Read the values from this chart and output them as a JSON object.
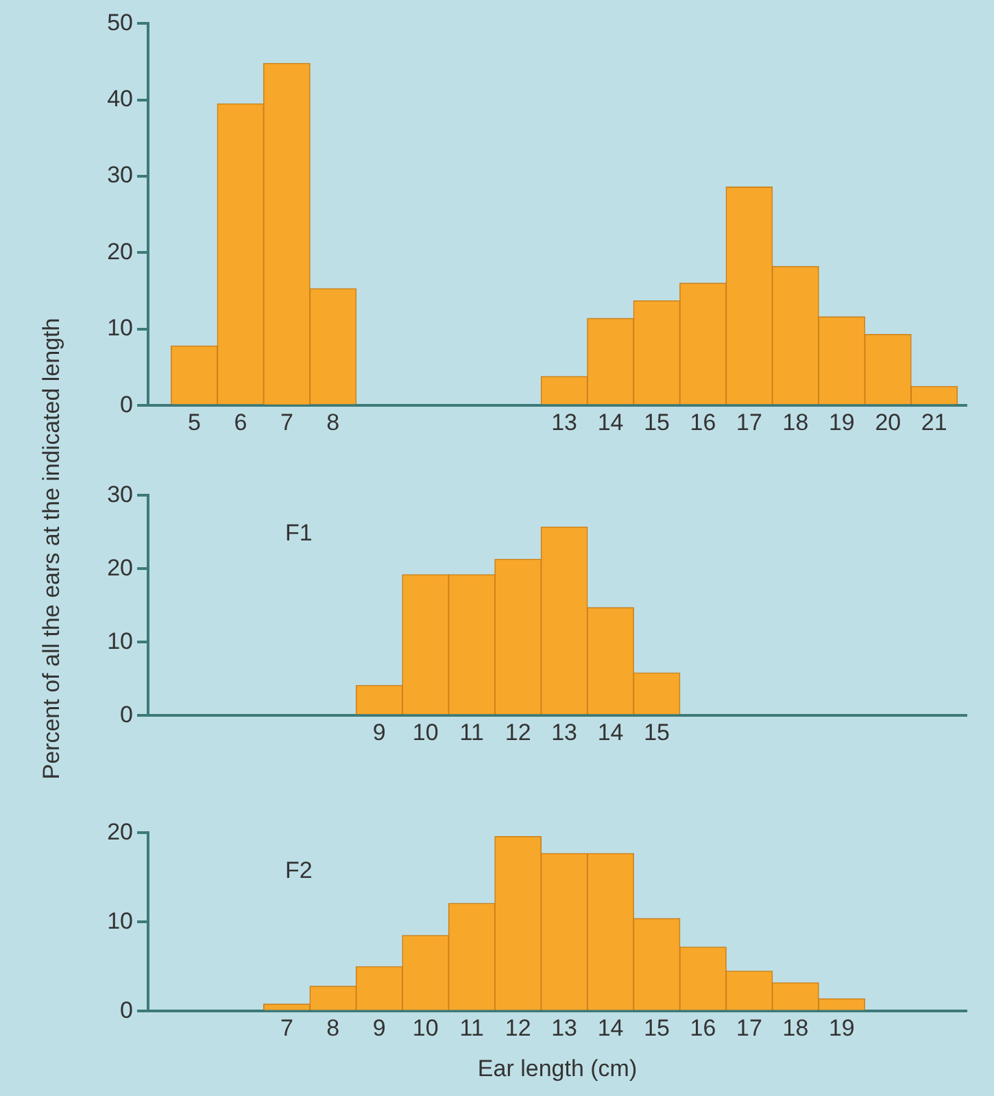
{
  "chart_data": [
    {
      "type": "histogram",
      "ylabel": "Percent of all the ears at the indicated length",
      "bins": [
        4.5,
        5.5,
        6.5,
        7.5,
        8.5,
        9.5,
        10.5,
        11.5,
        12.5,
        13.5,
        14.5,
        15.5,
        16.5,
        17.5,
        18.5,
        19.5,
        20.5,
        21.5
      ],
      "values": [
        7.8,
        39.5,
        44.8,
        15.3,
        0,
        0,
        0,
        0,
        3.8,
        11.4,
        13.7,
        16,
        28.6,
        18.2,
        11.6,
        9.3,
        2.5
      ],
      "color": "#f7a72a",
      "xlim": [
        4,
        21.7
      ],
      "xticks": [
        5,
        6,
        7,
        8,
        13,
        14,
        15,
        16,
        17,
        18,
        19,
        20,
        21
      ],
      "ylim": [
        0,
        50
      ],
      "yticks": [
        0,
        10,
        20,
        30,
        40,
        50
      ]
    },
    {
      "type": "histogram",
      "annotations": [
        "F1"
      ],
      "bins": [
        8.5,
        9.5,
        10.5,
        11.5,
        12.5,
        13.5,
        14.5,
        15.5
      ],
      "values": [
        4.1,
        19.2,
        19.2,
        21.3,
        25.7,
        14.7,
        5.8
      ],
      "color": "#f7a72a",
      "xlim": [
        4,
        21.7
      ],
      "xticks": [
        9,
        10,
        11,
        12,
        13,
        14,
        15
      ],
      "ylim": [
        0,
        30
      ],
      "yticks": [
        0,
        10,
        20,
        30
      ]
    },
    {
      "type": "histogram",
      "annotations": [
        "F2"
      ],
      "xlabel": "Ear length (cm)",
      "bins": [
        6.5,
        7.5,
        8.5,
        9.5,
        10.5,
        11.5,
        12.5,
        13.5,
        14.5,
        15.5,
        16.5,
        17.5,
        18.5,
        19.5
      ],
      "values": [
        0.8,
        2.8,
        5,
        8.5,
        12.1,
        19.6,
        17.7,
        17.7,
        10.4,
        7.2,
        4.5,
        3.2,
        1.4
      ],
      "color": "#f7a72a",
      "xlim": [
        4,
        21.7
      ],
      "xticks": [
        7,
        8,
        9,
        10,
        11,
        12,
        13,
        14,
        15,
        16,
        17,
        18,
        19
      ],
      "ylim": [
        0,
        20
      ],
      "yticks": [
        0,
        10,
        20
      ]
    }
  ]
}
